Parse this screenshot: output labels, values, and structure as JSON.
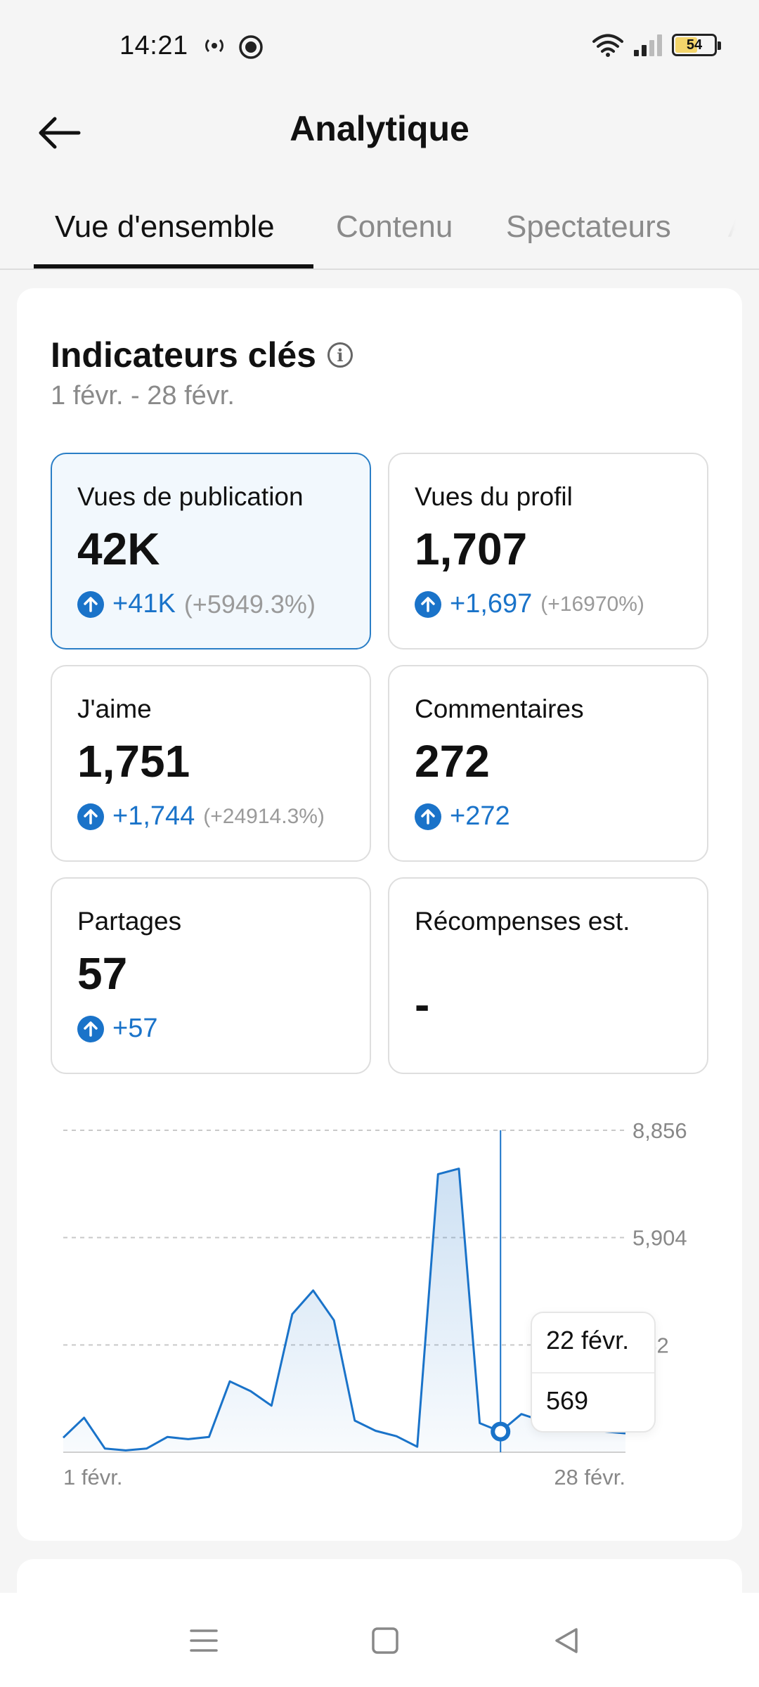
{
  "status_bar": {
    "time": "14:21",
    "battery": "54"
  },
  "header": {
    "title": "Analytique"
  },
  "tabs": [
    {
      "label": "Vue d'ensemble"
    },
    {
      "label": "Contenu"
    },
    {
      "label": "Spectateurs"
    },
    {
      "label": "Al"
    }
  ],
  "key_metrics": {
    "title": "Indicateurs clés",
    "date_range": "1 févr. - 28 févr.",
    "cards": [
      {
        "label": "Vues de publication",
        "value": "42K",
        "change": "+41K",
        "percent": "(+5949.3%)"
      },
      {
        "label": "Vues du profil",
        "value": "1,707",
        "change": "+1,697",
        "percent": "(+16970%)"
      },
      {
        "label": "J'aime",
        "value": "1,751",
        "change": "+1,744",
        "percent": "(+24914.3%)"
      },
      {
        "label": "Commentaires",
        "value": "272",
        "change": "+272",
        "percent": ""
      },
      {
        "label": "Partages",
        "value": "57",
        "change": "+57",
        "percent": ""
      },
      {
        "label": "Récompenses est.",
        "value": "-",
        "change": "",
        "percent": ""
      }
    ]
  },
  "chart_data": {
    "type": "area",
    "x_start_label": "1 févr.",
    "x_end_label": "28 févr.",
    "y_tick_labels": [
      "8,856",
      "5,904",
      "952"
    ],
    "ylim": [
      0,
      8856
    ],
    "grid": true,
    "x": [
      "1 févr.",
      "2 févr.",
      "3 févr.",
      "4 févr.",
      "5 févr.",
      "6 févr.",
      "7 févr.",
      "8 févr.",
      "9 févr.",
      "10 févr.",
      "11 févr.",
      "12 févr.",
      "13 févr.",
      "14 févr.",
      "15 févr.",
      "16 févr.",
      "17 févr.",
      "18 févr.",
      "19 févr.",
      "20 févr.",
      "21 févr.",
      "22 févr.",
      "23 févr.",
      "24 févr.",
      "25 févr.",
      "26 févr.",
      "27 févr.",
      "28 févr."
    ],
    "values": [
      400,
      950,
      100,
      50,
      100,
      420,
      360,
      420,
      1950,
      1680,
      1280,
      3800,
      4450,
      3630,
      870,
      590,
      440,
      150,
      7650,
      7800,
      800,
      569,
      1050,
      860,
      740,
      620,
      570,
      520
    ],
    "highlight": {
      "date": "22 févr.",
      "value": "569",
      "index": 21
    },
    "color": "#1a73c9"
  }
}
